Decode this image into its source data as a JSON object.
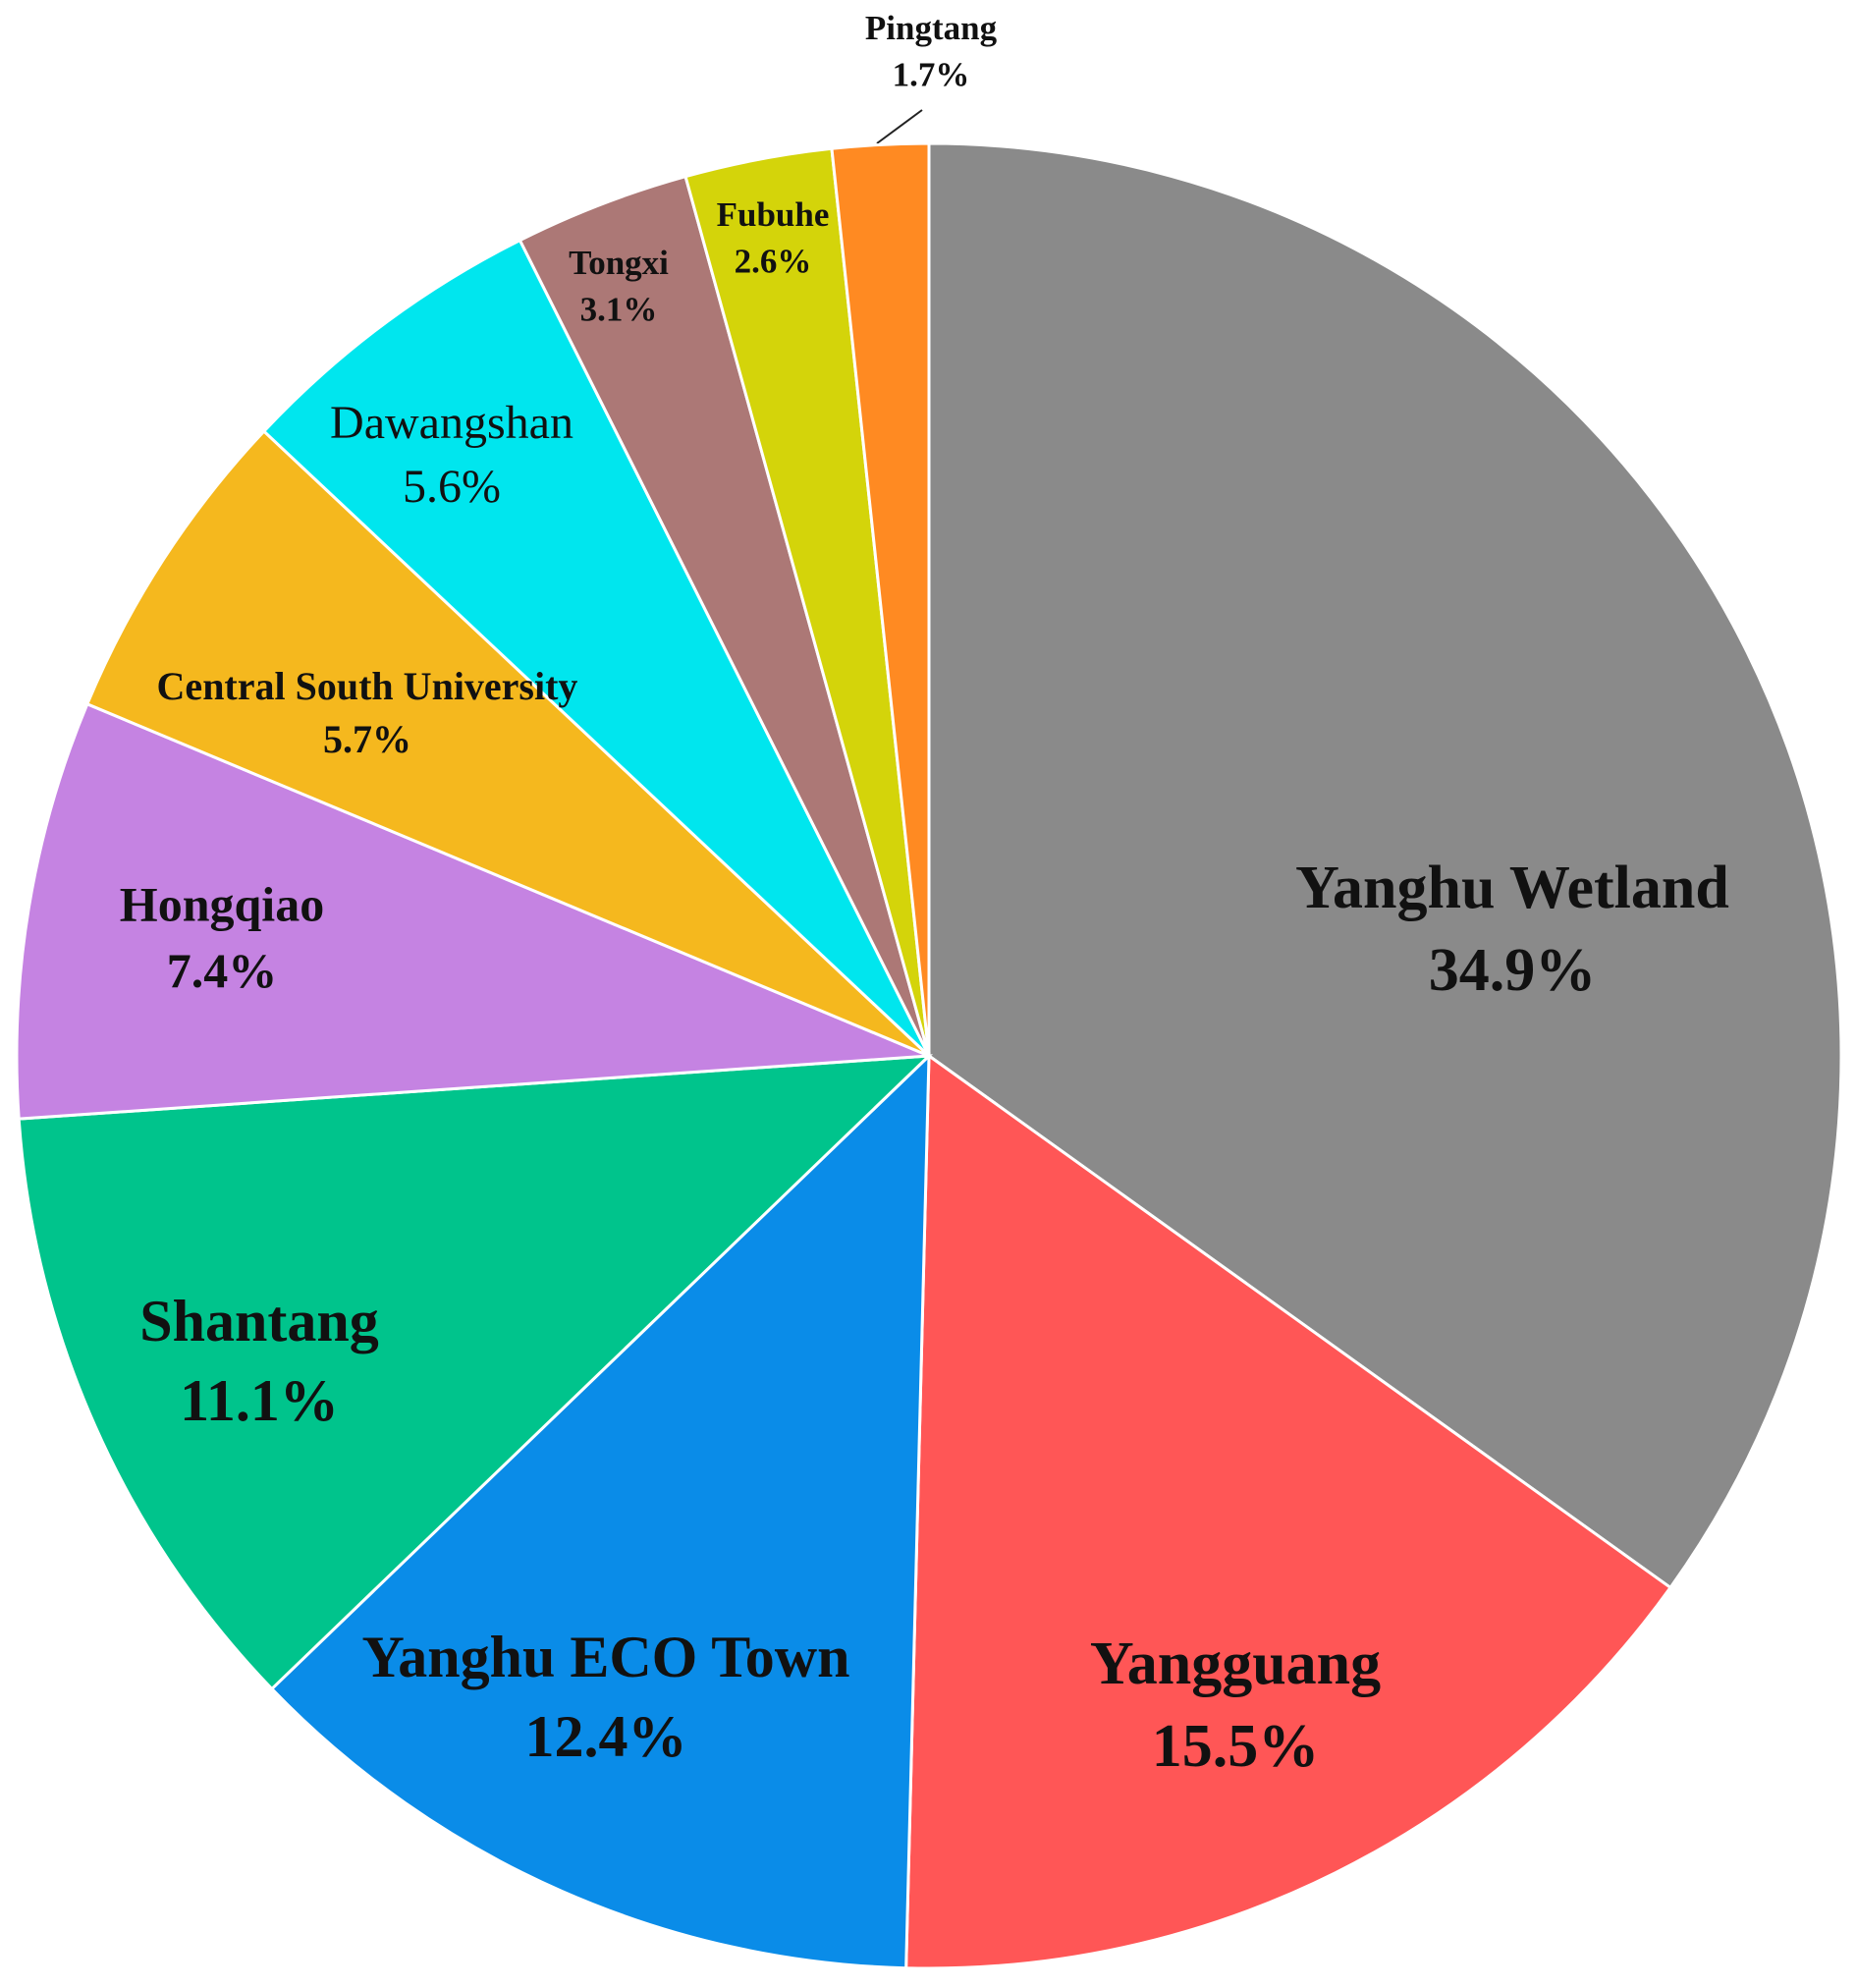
{
  "chart_data": {
    "type": "pie",
    "categories": [
      "Yanghu Wetland",
      "Yangguang",
      "Yanghu ECO Town",
      "Shantang",
      "Hongqiao",
      "Central South University",
      "Dawangshan",
      "Tongxi",
      "Fubuhe",
      "Pingtang"
    ],
    "values": [
      34.9,
      15.5,
      12.4,
      11.1,
      7.4,
      5.7,
      5.6,
      3.1,
      2.6,
      1.7
    ],
    "value_labels": [
      "34.9%",
      "15.5%",
      "12.4%",
      "11.1%",
      "7.4%",
      "5.7%",
      "5.6%",
      "3.1%",
      "2.6%",
      "1.7%"
    ],
    "colors": [
      "#8a8a8a",
      "#ff5656",
      "#0a8ce8",
      "#00c48c",
      "#c583e2",
      "#f5b81e",
      "#00e6ee",
      "#ac7876",
      "#d4d40a",
      "#ff8a22"
    ]
  }
}
